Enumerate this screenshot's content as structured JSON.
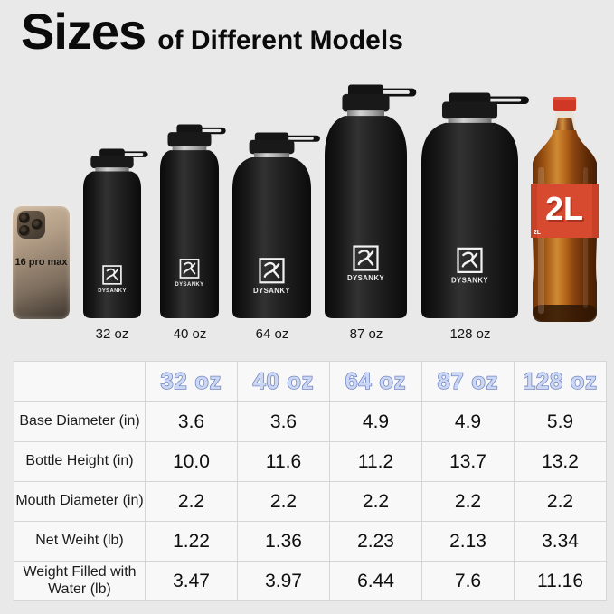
{
  "title": {
    "primary": "Sizes",
    "secondary": "of Different Models"
  },
  "brand": "DYSANKY",
  "scene": {
    "phone_label": "16 pro max",
    "bottle_labels": [
      "32 oz",
      "40 oz",
      "64 oz",
      "87 oz",
      "128 oz"
    ],
    "soda_label": "2L"
  },
  "table": {
    "column_headers": [
      "32 oz",
      "40 oz",
      "64 oz",
      "87 oz",
      "128 oz"
    ],
    "rows": [
      {
        "label": "Base Diameter (in)",
        "values": [
          "3.6",
          "3.6",
          "4.9",
          "4.9",
          "5.9"
        ]
      },
      {
        "label": "Bottle Height (in)",
        "values": [
          "10.0",
          "11.6",
          "11.2",
          "13.7",
          "13.2"
        ]
      },
      {
        "label": "Mouth Diameter (in)",
        "values": [
          "2.2",
          "2.2",
          "2.2",
          "2.2",
          "2.2"
        ]
      },
      {
        "label": "Net Weiht (lb)",
        "values": [
          "1.22",
          "1.36",
          "2.23",
          "2.13",
          "3.34"
        ]
      },
      {
        "label": "Weight Filled with Water (lb)",
        "values": [
          "3.47",
          "3.97",
          "6.44",
          "7.6",
          "11.16"
        ]
      }
    ]
  },
  "colors": {
    "page_bg": "#e9e9e9",
    "table_bg": "#f8f8f8",
    "header_text_fill": "#ccd7f3",
    "header_text_outline": "#7588c3",
    "soda_label_red": "#d84a30",
    "soda_cap_red": "#cf3726",
    "bottle_black": "#161616"
  }
}
